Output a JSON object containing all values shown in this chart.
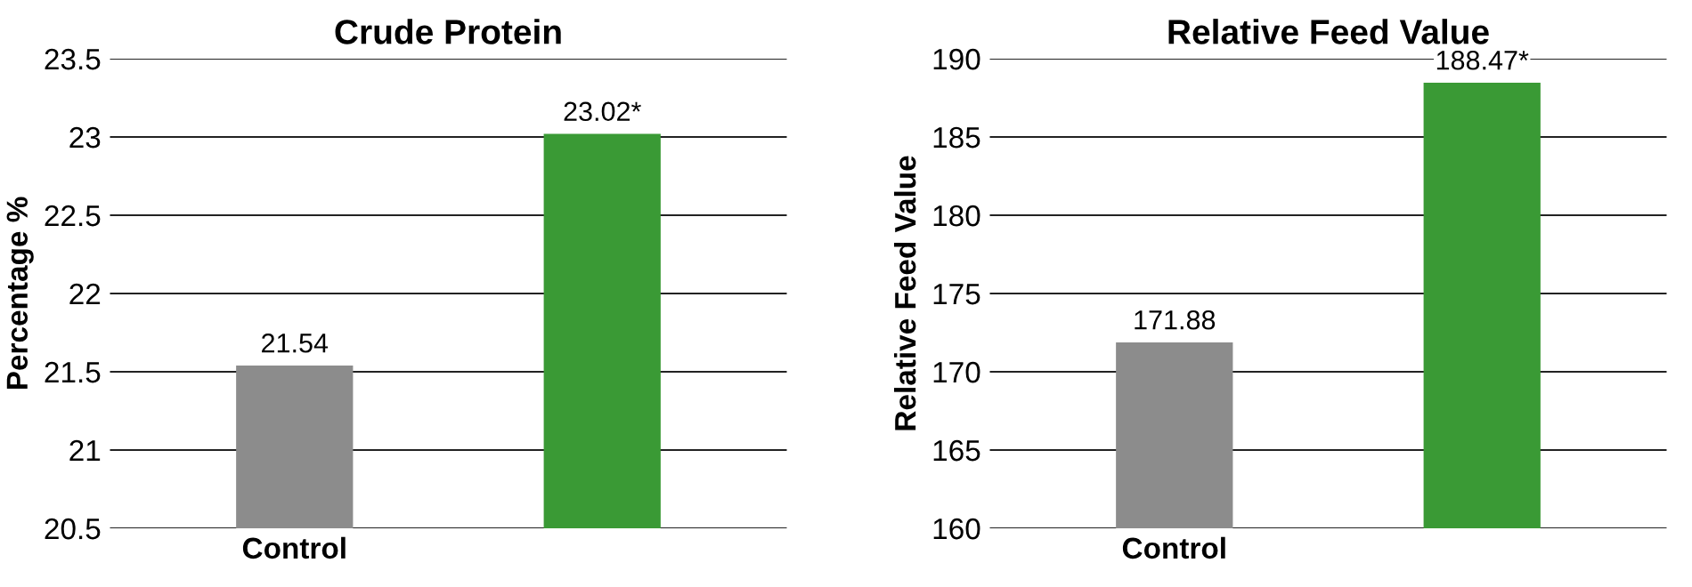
{
  "chart_data": [
    {
      "type": "bar",
      "title": "Crude Protein",
      "ylabel": "Percentage %",
      "categories": [
        "Control",
        null
      ],
      "values": [
        21.54,
        23.02
      ],
      "colors": [
        "#8c8c8c",
        "#3a9a35"
      ],
      "value_labels": [
        "21.54",
        "23.02*"
      ],
      "ylim": [
        20.5,
        23.5
      ],
      "yticks": [
        20.5,
        21,
        21.5,
        22,
        22.5,
        23,
        23.5
      ],
      "grid": "y"
    },
    {
      "type": "bar",
      "title": "Relative Feed Value",
      "ylabel": "Relative Feed Value",
      "categories": [
        "Control",
        null
      ],
      "values": [
        171.88,
        188.47
      ],
      "colors": [
        "#8c8c8c",
        "#3a9a35"
      ],
      "value_labels": [
        "171.88",
        "188.47*"
      ],
      "ylim": [
        160,
        190
      ],
      "yticks": [
        160,
        165,
        170,
        175,
        180,
        185,
        190
      ],
      "grid": "y"
    }
  ]
}
